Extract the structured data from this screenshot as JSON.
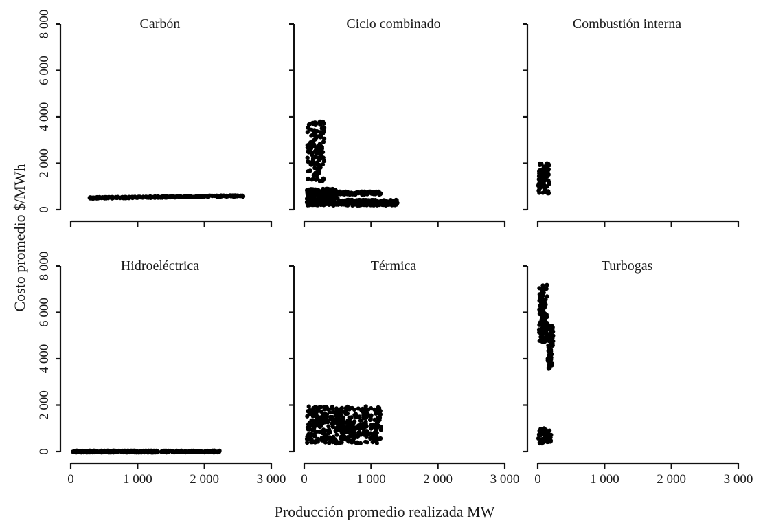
{
  "chart_data": {
    "type": "scatter",
    "ylabel": "Costo promedio $/MWh",
    "xlabel": "Producción promedio realizada MW",
    "xlim": [
      0,
      3000
    ],
    "ylim": [
      0,
      8000
    ],
    "x_ticks": [
      0,
      1000,
      2000,
      3000
    ],
    "x_tick_labels": [
      "0",
      "1 000",
      "2 000",
      "3 000"
    ],
    "y_ticks": [
      0,
      2000,
      4000,
      6000,
      8000
    ],
    "y_tick_labels": [
      "0",
      "2 000",
      "4 000",
      "6 000",
      "8 000"
    ],
    "grid": false,
    "facets": [
      {
        "title": "Carbón",
        "clusters": [
          {
            "x": [
              280,
              2580
            ],
            "y": [
              480,
              620
            ],
            "n": 260,
            "note": "slight upward trend"
          }
        ]
      },
      {
        "title": "Ciclo combinado",
        "clusters": [
          {
            "x": [
              40,
              300
            ],
            "y": [
              1200,
              3850
            ],
            "n": 140
          },
          {
            "x": [
              40,
              1400
            ],
            "y": [
              180,
              420
            ],
            "n": 320
          },
          {
            "x": [
              40,
              1150
            ],
            "y": [
              650,
              780
            ],
            "n": 140
          },
          {
            "x": [
              40,
              500
            ],
            "y": [
              450,
              900
            ],
            "n": 120
          }
        ]
      },
      {
        "title": "Combustión interna",
        "clusters": [
          {
            "x": [
              10,
              170
            ],
            "y": [
              700,
              2000
            ],
            "n": 90
          }
        ]
      },
      {
        "title": "Hidroeléctrica",
        "clusters": [
          {
            "x": [
              20,
              1300
            ],
            "y": [
              -40,
              40
            ],
            "n": 260
          },
          {
            "x": [
              1350,
              2250
            ],
            "y": [
              -40,
              40
            ],
            "n": 90
          }
        ]
      },
      {
        "title": "Térmica",
        "clusters": [
          {
            "x": [
              40,
              1150
            ],
            "y": [
              350,
              1950
            ],
            "n": 420
          }
        ]
      },
      {
        "title": "Turbogas",
        "clusters": [
          {
            "x": [
              20,
              140
            ],
            "y": [
              4700,
              7200
            ],
            "n": 130
          },
          {
            "x": [
              150,
              230
            ],
            "y": [
              3400,
              5500
            ],
            "n": 60
          },
          {
            "x": [
              10,
              200
            ],
            "y": [
              350,
              1000
            ],
            "n": 50
          }
        ]
      }
    ]
  }
}
